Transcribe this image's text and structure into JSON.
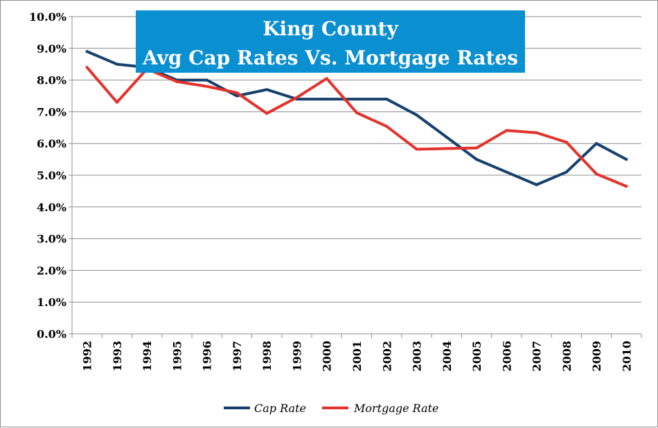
{
  "chart_data": {
    "type": "line",
    "title": [
      "King County",
      "Avg Cap Rates Vs. Mortgage Rates"
    ],
    "xlabel": "",
    "ylabel": "",
    "categories": [
      "1992",
      "1993",
      "1994",
      "1995",
      "1996",
      "1997",
      "1998",
      "1999",
      "2000",
      "2001",
      "2002",
      "2003",
      "2004",
      "2005",
      "2006",
      "2007",
      "2008",
      "2009",
      "2010"
    ],
    "ylim": [
      0,
      10
    ],
    "y_ticks": [
      {
        "value": 0,
        "label": "0.0%"
      },
      {
        "value": 1,
        "label": "1.0%"
      },
      {
        "value": 2,
        "label": "2.0%"
      },
      {
        "value": 3,
        "label": "3.0%"
      },
      {
        "value": 4,
        "label": "4.0%"
      },
      {
        "value": 5,
        "label": "5.0%"
      },
      {
        "value": 6,
        "label": "6.0%"
      },
      {
        "value": 7,
        "label": "7.0%"
      },
      {
        "value": 8,
        "label": "8.0%"
      },
      {
        "value": 9,
        "label": "9.0%"
      },
      {
        "value": 10,
        "label": "10.0%"
      }
    ],
    "grid": true,
    "legend_position": "bottom",
    "series": [
      {
        "name": "Cap Rate",
        "color": "#17406d",
        "values": [
          8.9,
          8.5,
          8.4,
          8.0,
          8.0,
          7.5,
          7.7,
          7.4,
          7.4,
          7.4,
          7.4,
          6.9,
          6.2,
          5.5,
          5.1,
          4.7,
          5.1,
          6.0,
          5.5
        ]
      },
      {
        "name": "Mortgage Rate",
        "color": "#e3322b",
        "values": [
          8.4,
          7.3,
          8.35,
          7.95,
          7.8,
          7.6,
          6.95,
          7.45,
          8.05,
          6.97,
          6.54,
          5.82,
          5.84,
          5.86,
          6.41,
          6.34,
          6.04,
          5.04,
          4.65
        ]
      }
    ]
  },
  "colors": {
    "title_background": "#0a8fd1",
    "gridline": "#8c8c8c",
    "axis": "#8c8c8c"
  }
}
